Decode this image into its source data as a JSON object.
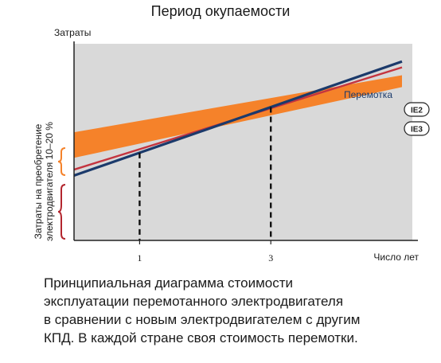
{
  "chart_data": {
    "type": "line",
    "title": "Период окупаемости",
    "ylabel": "Затраты",
    "xlabel": "Число лет",
    "xlim": [
      0,
      5
    ],
    "ticks": [
      {
        "value": 1,
        "label": "1"
      },
      {
        "value": 3,
        "label": "3"
      }
    ],
    "series": [
      {
        "name": "Перемотка",
        "color": "#1b3a6b",
        "points": [
          [
            0,
            0.33
          ],
          [
            5,
            0.91
          ]
        ]
      },
      {
        "name": "IE2",
        "color": "#c4343f",
        "points": [
          [
            0,
            0.36
          ],
          [
            5,
            0.88
          ]
        ]
      }
    ],
    "band": {
      "name": "IE3",
      "color": "#f5822a",
      "lower": [
        [
          0,
          0.42
        ],
        [
          5,
          0.78
        ]
      ],
      "upper": [
        [
          0,
          0.55
        ],
        [
          5,
          0.84
        ]
      ]
    },
    "intersections": [
      1,
      3
    ],
    "side_label": [
      "Затраты на преобретение",
      "электродвигателя 10–20 %"
    ],
    "grid": false
  },
  "caption": [
    "Принципиальная диаграмма стоимости",
    "эксплуатации перемотанного электродвигателя",
    "в сравнении с новым электродвигателем с другим",
    "КПД. В каждой стране своя стоимость перемотки."
  ],
  "colors": {
    "plot_bg": "#d9d9d9",
    "brace_orange": "#f5822a",
    "brace_red": "#b3262e"
  }
}
